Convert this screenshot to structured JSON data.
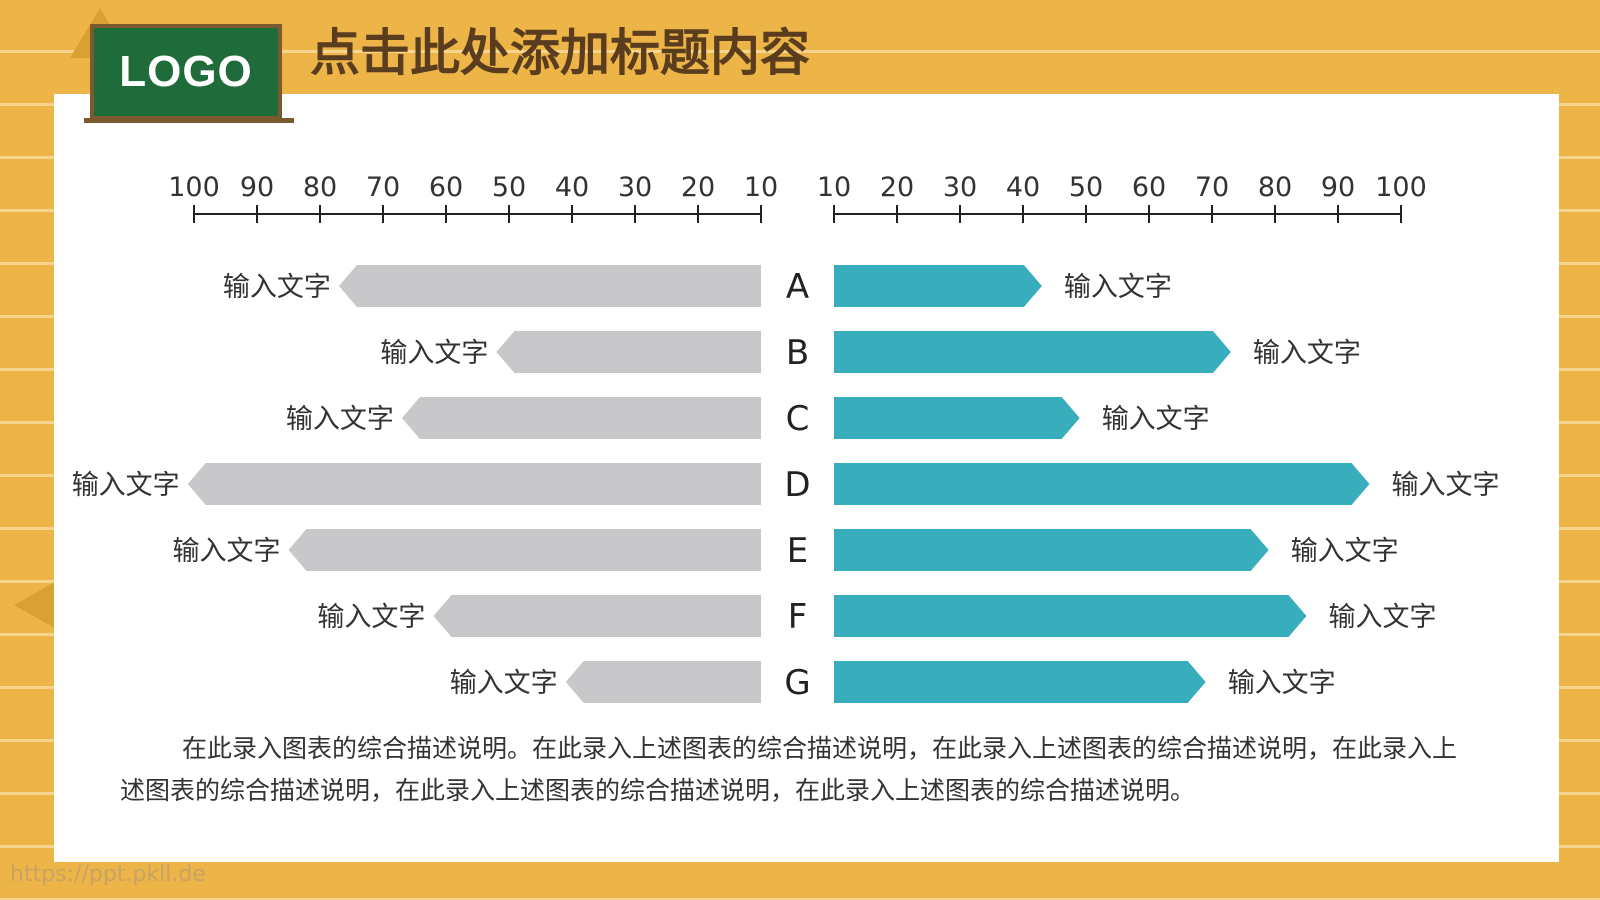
{
  "logo": {
    "text": "LOGO"
  },
  "title": "点击此处添加标题内容",
  "chart_data": {
    "type": "bar",
    "orientation": "horizontal-butterfly",
    "categories": [
      "A",
      "B",
      "C",
      "D",
      "E",
      "F",
      "G"
    ],
    "axis_ticks": [
      100,
      90,
      80,
      70,
      60,
      50,
      40,
      30,
      20,
      10
    ],
    "xlim": [
      10,
      100
    ],
    "series": [
      {
        "side": "left",
        "color": "#C8C8CA",
        "values": [
          77,
          52,
          67,
          101,
          85,
          62,
          41
        ],
        "labels": [
          "输入文字",
          "输入文字",
          "输入文字",
          "输入文字",
          "输入文字",
          "输入文字",
          "输入文字"
        ]
      },
      {
        "side": "right",
        "color": "#38AEBD",
        "values": [
          43,
          73,
          49,
          95,
          79,
          85,
          69
        ],
        "labels": [
          "输入文字",
          "输入文字",
          "输入文字",
          "输入文字",
          "输入文字",
          "输入文字",
          "输入文字"
        ]
      }
    ],
    "grid": false,
    "legend": "none"
  },
  "description": "在此录入图表的综合描述说明。在此录入上述图表的综合描述说明，在此录入上述图表的综合描述说明，在此录入上述图表的综合描述说明，在此录入上述图表的综合描述说明，在此录入上述图表的综合描述说明。",
  "watermark": "https://ppt.pkll.de"
}
